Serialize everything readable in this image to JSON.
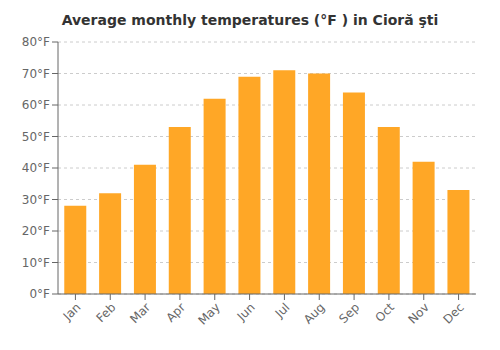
{
  "chart_data": {
    "type": "bar",
    "title": "Average monthly temperatures (°F ) in Cioră şti",
    "categories": [
      "Jan",
      "Feb",
      "Mar",
      "Apr",
      "May",
      "Jun",
      "Jul",
      "Aug",
      "Sep",
      "Oct",
      "Nov",
      "Dec"
    ],
    "values": [
      28,
      32,
      41,
      53,
      62,
      69,
      71,
      70,
      64,
      53,
      42,
      33
    ],
    "color": "#FFA726",
    "ylim": [
      0,
      80
    ],
    "yticks": [
      {
        "value": 0,
        "label": "0°F"
      },
      {
        "value": 10,
        "label": "10°F"
      },
      {
        "value": 20,
        "label": "20°F"
      },
      {
        "value": 30,
        "label": "30°F"
      },
      {
        "value": 40,
        "label": "40°F"
      },
      {
        "value": 50,
        "label": "50°F"
      },
      {
        "value": 60,
        "label": "60°F"
      },
      {
        "value": 70,
        "label": "70°F"
      },
      {
        "value": 80,
        "label": "80°F"
      }
    ],
    "grid": true
  }
}
